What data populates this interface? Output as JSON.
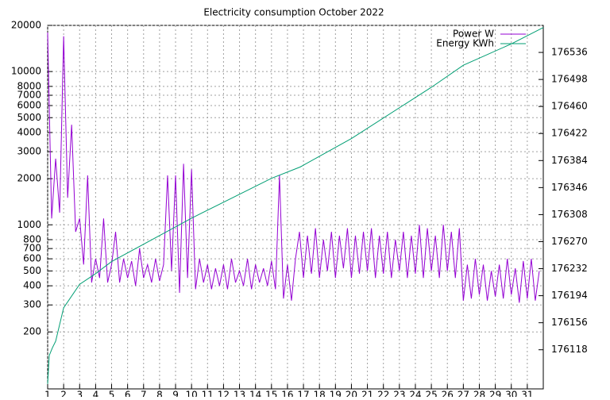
{
  "chart_data": {
    "type": "line",
    "title": "Electricity consumption October 2022",
    "log_scale_y": true,
    "grid": true,
    "legend": "top-right",
    "xlim": [
      1,
      32
    ],
    "xticks": [
      1,
      2,
      3,
      4,
      5,
      6,
      7,
      8,
      9,
      10,
      11,
      12,
      13,
      14,
      15,
      16,
      17,
      18,
      19,
      20,
      21,
      22,
      23,
      24,
      25,
      26,
      27,
      28,
      29,
      30,
      31
    ],
    "ylim": [
      85,
      20000
    ],
    "yticks": [
      200,
      300,
      400,
      500,
      600,
      700,
      800,
      1000,
      2000,
      3000,
      4000,
      5000,
      6000,
      7000,
      8000,
      10000,
      20000
    ],
    "y2lim": [
      176063,
      176574
    ],
    "y2ticks": [
      176118,
      176156,
      176194,
      176232,
      176270,
      176308,
      176346,
      176384,
      176422,
      176460,
      176498,
      176536
    ],
    "series": [
      {
        "name": "Power W",
        "color": "#9400d3",
        "axis": "y",
        "x": [
          1,
          1.25,
          1.5,
          1.75,
          2,
          2.25,
          2.5,
          2.75,
          3,
          3.25,
          3.5,
          3.75,
          4,
          4.25,
          4.5,
          4.75,
          5,
          5.25,
          5.5,
          5.75,
          6,
          6.25,
          6.5,
          6.75,
          7,
          7.25,
          7.5,
          7.75,
          8,
          8.25,
          8.5,
          8.75,
          9,
          9.25,
          9.5,
          9.75,
          10,
          10.25,
          10.5,
          10.75,
          11,
          11.25,
          11.5,
          11.75,
          12,
          12.25,
          12.5,
          12.75,
          13,
          13.25,
          13.5,
          13.75,
          14,
          14.25,
          14.5,
          14.75,
          15,
          15.25,
          15.5,
          15.75,
          16,
          16.25,
          16.5,
          16.75,
          17,
          17.25,
          17.5,
          17.75,
          18,
          18.25,
          18.5,
          18.75,
          19,
          19.25,
          19.5,
          19.75,
          20,
          20.25,
          20.5,
          20.75,
          21,
          21.25,
          21.5,
          21.75,
          22,
          22.25,
          22.5,
          22.75,
          23,
          23.25,
          23.5,
          23.75,
          24,
          24.25,
          24.5,
          24.75,
          25,
          25.25,
          25.5,
          25.75,
          26,
          26.25,
          26.5,
          26.75,
          27,
          27.25,
          27.5,
          27.75,
          28,
          28.25,
          28.5,
          28.75,
          29,
          29.25,
          29.5,
          29.75,
          30,
          30.25,
          30.5,
          30.75,
          31,
          31.25,
          31.5,
          31.75
        ],
        "values": [
          18000,
          1100,
          2700,
          1200,
          17000,
          1500,
          4500,
          900,
          1100,
          550,
          2100,
          420,
          600,
          450,
          1100,
          420,
          550,
          900,
          420,
          600,
          450,
          580,
          400,
          700,
          450,
          550,
          420,
          600,
          430,
          550,
          2100,
          500,
          2100,
          360,
          2500,
          450,
          2300,
          380,
          600,
          420,
          550,
          380,
          520,
          400,
          550,
          380,
          600,
          420,
          500,
          400,
          600,
          380,
          550,
          420,
          520,
          400,
          580,
          380,
          2100,
          330,
          550,
          320,
          600,
          900,
          450,
          850,
          480,
          950,
          450,
          800,
          500,
          900,
          450,
          850,
          520,
          950,
          450,
          850,
          480,
          900,
          500,
          950,
          450,
          850,
          480,
          900,
          450,
          800,
          500,
          900,
          450,
          850,
          480,
          1000,
          450,
          950,
          500,
          850,
          450,
          1000,
          500,
          900,
          450,
          950,
          320,
          550,
          330,
          600,
          350,
          550,
          320,
          500,
          340,
          550,
          330,
          600,
          350,
          520,
          310,
          580,
          330,
          600,
          320,
          500
        ]
      },
      {
        "name": "Energy KWh",
        "color": "#009e73",
        "axis": "y2",
        "x": [
          1,
          1.1,
          1.3,
          1.5,
          2,
          3,
          4,
          5,
          10,
          15,
          16.8,
          20,
          25,
          27,
          30,
          32
        ],
        "values": [
          176070,
          176110,
          176121,
          176130,
          176177,
          176210,
          176225,
          176242,
          176303,
          176359,
          176375,
          176415,
          176487,
          176518,
          176548,
          176571
        ]
      }
    ]
  }
}
